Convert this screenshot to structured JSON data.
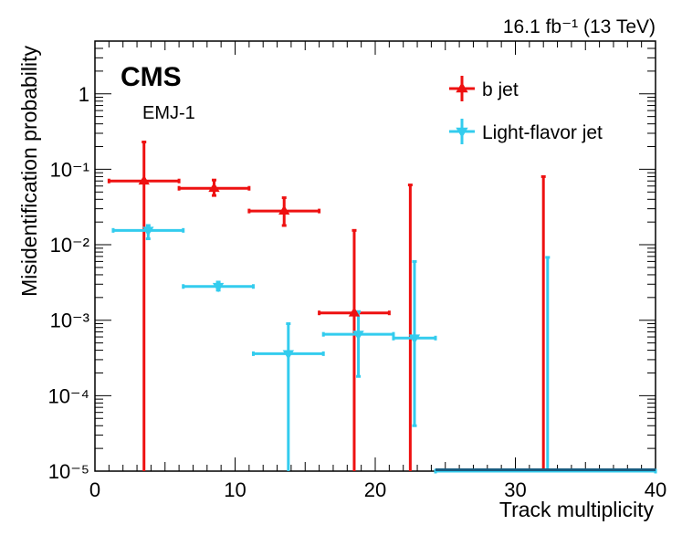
{
  "chart_data": {
    "type": "scatter",
    "title": "",
    "experiment_label": "CMS",
    "model_label": "EMJ-1",
    "lumi_label": "16.1 fb⁻¹ (13 TeV)",
    "xlabel": "Track multiplicity",
    "ylabel": "Misidentification probability",
    "xlim": [
      0,
      40
    ],
    "ylim": [
      1e-05,
      5
    ],
    "yscale": "log",
    "x_ticks": [
      0,
      10,
      20,
      30,
      40
    ],
    "y_ticks": [
      {
        "value": 1e-05,
        "label": "10⁻⁵"
      },
      {
        "value": 0.0001,
        "label": "10⁻⁴"
      },
      {
        "value": 0.001,
        "label": "10⁻³"
      },
      {
        "value": 0.01,
        "label": "10⁻²"
      },
      {
        "value": 0.1,
        "label": "10⁻¹"
      },
      {
        "value": 1,
        "label": "1"
      }
    ],
    "legend_position": "top-right",
    "series": [
      {
        "name": "b jet",
        "color": "#ee1111",
        "marker": "triangle-up",
        "points": [
          {
            "x": 3.5,
            "y": 0.07,
            "xlo": 1,
            "xhi": 6,
            "ylo": 1e-05,
            "yhi": 0.23
          },
          {
            "x": 8.5,
            "y": 0.056,
            "xlo": 6,
            "xhi": 11,
            "ylo": 0.045,
            "yhi": 0.072
          },
          {
            "x": 13.5,
            "y": 0.028,
            "xlo": 11,
            "xhi": 16,
            "ylo": 0.018,
            "yhi": 0.042
          },
          {
            "x": 18.5,
            "y": 0.00125,
            "xlo": 16,
            "xhi": 21,
            "ylo": 1e-05,
            "yhi": 0.0155
          },
          {
            "x": 22.5,
            "y": 1e-05,
            "xlo": 22.5,
            "xhi": 22.5,
            "ylo": 1e-05,
            "yhi": 0.062
          },
          {
            "x": 32,
            "y": 1e-05,
            "xlo": 32,
            "xhi": 32,
            "ylo": 1e-05,
            "yhi": 0.08
          }
        ]
      },
      {
        "name": "Light-flavor jet",
        "color": "#33ccee",
        "marker": "triangle-down",
        "points": [
          {
            "x": 3.8,
            "y": 0.0155,
            "xlo": 1.3,
            "xhi": 6.3,
            "ylo": 0.012,
            "yhi": 0.018
          },
          {
            "x": 8.8,
            "y": 0.0028,
            "xlo": 6.3,
            "xhi": 11.3,
            "ylo": 0.0025,
            "yhi": 0.0032
          },
          {
            "x": 13.8,
            "y": 0.00036,
            "xlo": 11.3,
            "xhi": 16.3,
            "ylo": 1e-05,
            "yhi": 0.0009
          },
          {
            "x": 18.8,
            "y": 0.00065,
            "xlo": 16.3,
            "xhi": 21.3,
            "ylo": 0.00018,
            "yhi": 0.0013
          },
          {
            "x": 22.8,
            "y": 0.00058,
            "xlo": 21.3,
            "xhi": 24.3,
            "ylo": 4e-05,
            "yhi": 0.006
          },
          {
            "x": 32.3,
            "y": 1e-05,
            "xlo": 24.3,
            "xhi": 40,
            "ylo": 1e-05,
            "yhi": 0.0068
          }
        ]
      }
    ]
  }
}
